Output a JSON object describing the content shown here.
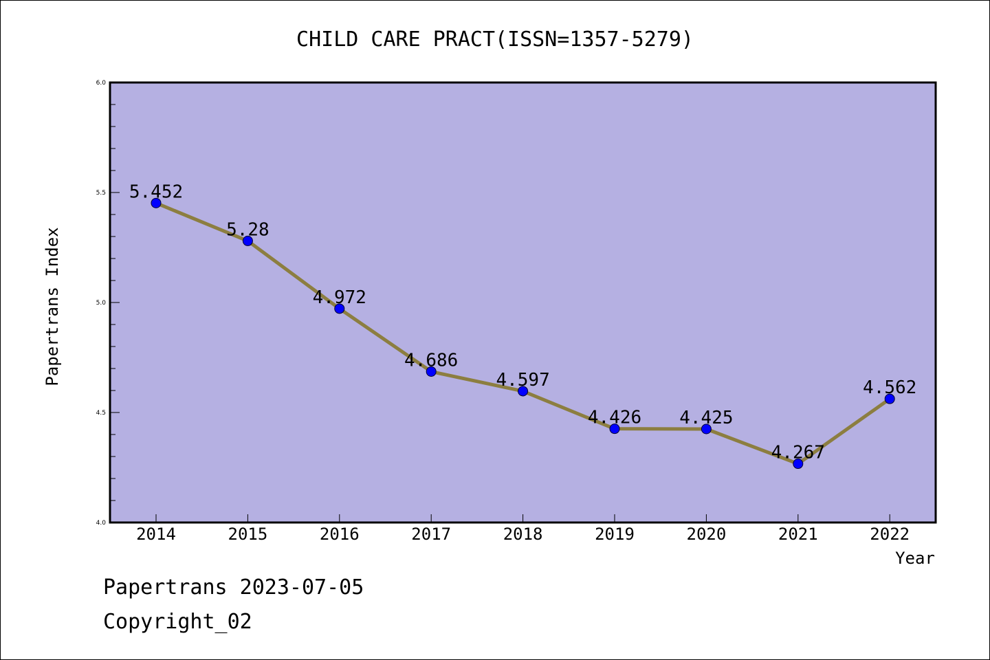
{
  "chart_data": {
    "type": "line",
    "title": "CHILD CARE PRACT(ISSN=1357-5279)",
    "xlabel": "Year",
    "ylabel": "Papertrans Index",
    "x": [
      "2014",
      "2015",
      "2016",
      "2017",
      "2018",
      "2019",
      "2020",
      "2021",
      "2022"
    ],
    "series": [
      {
        "values": [
          5.452,
          5.28,
          4.972,
          4.686,
          4.597,
          4.426,
          4.425,
          4.267,
          4.562
        ],
        "labels": [
          "5.452",
          "5.28",
          "4.972",
          "4.686",
          "4.597",
          "4.426",
          "4.425",
          "4.267",
          "4.562"
        ]
      }
    ],
    "ylim": [
      4.0,
      6.0
    ],
    "yticks": [
      "4.0",
      "4.5",
      "5.0",
      "5.5",
      "6.0"
    ],
    "ytick_values": [
      4.0,
      4.5,
      5.0,
      5.5,
      6.0
    ],
    "grid": false,
    "colors": {
      "plot_background": "#b5b0e2",
      "line": "#8c7e40",
      "marker": "#0000ff"
    }
  },
  "footer": {
    "line1": "Papertrans 2023-07-05",
    "line2": "Copyright_02"
  }
}
